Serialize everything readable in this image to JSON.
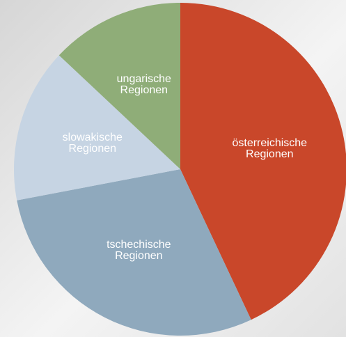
{
  "chart_data": {
    "type": "pie",
    "categories": [
      "österreichische Regionen",
      "tschechische Regionen",
      "slowakische Regionen",
      "ungarische Regionen"
    ],
    "values": [
      43,
      29,
      15,
      13
    ],
    "colors": [
      "#c9472a",
      "#8fa9bd",
      "#c6d4e3",
      "#8fad78"
    ]
  }
}
